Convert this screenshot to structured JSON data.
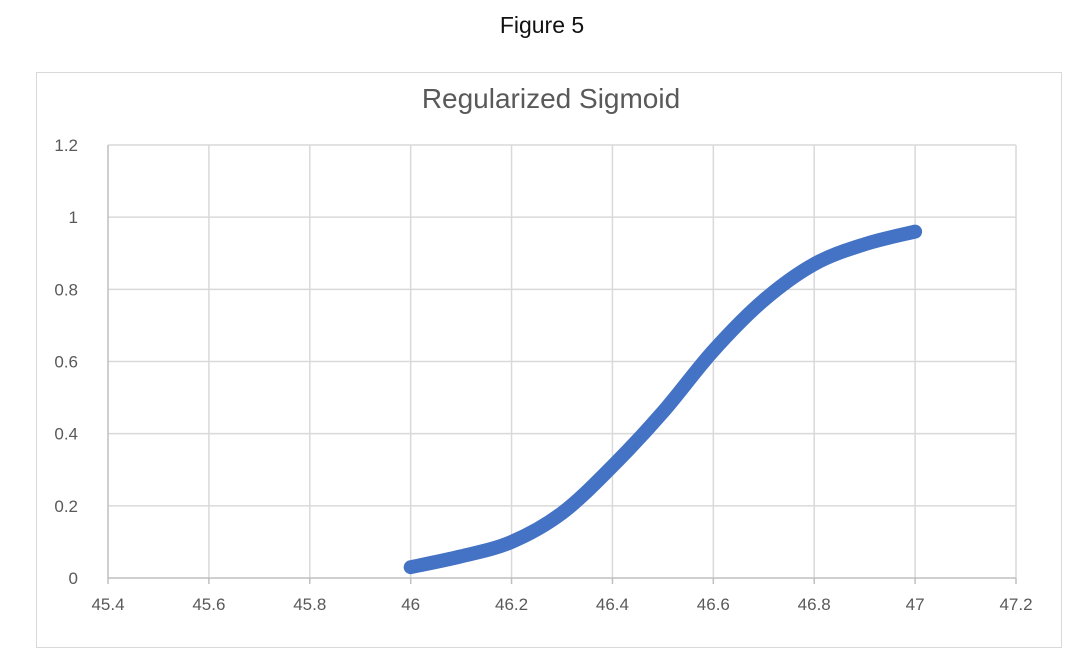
{
  "figure": {
    "caption": "Figure 5"
  },
  "chart_data": {
    "type": "line",
    "title": "Regularized Sigmoid",
    "xlabel": "",
    "ylabel": "",
    "xlim": [
      45.4,
      47.2
    ],
    "ylim": [
      0,
      1.2
    ],
    "xticks": [
      45.4,
      45.6,
      45.8,
      46,
      46.2,
      46.4,
      46.6,
      46.8,
      47,
      47.2
    ],
    "xtick_labels": [
      "45.4",
      "45.6",
      "45.8",
      "46",
      "46.2",
      "46.4",
      "46.6",
      "46.8",
      "47",
      "47.2"
    ],
    "yticks": [
      0,
      0.2,
      0.4,
      0.6,
      0.8,
      1,
      1.2
    ],
    "ytick_labels": [
      "0",
      "0.2",
      "0.4",
      "0.6",
      "0.8",
      "1",
      "1.2"
    ],
    "grid": true,
    "legend": "none",
    "series": [
      {
        "color": "#4472c4",
        "x": [
          46.0,
          46.1,
          46.2,
          46.3,
          46.4,
          46.5,
          46.6,
          46.7,
          46.8,
          46.9,
          47.0
        ],
        "y": [
          0.03,
          0.06,
          0.1,
          0.18,
          0.31,
          0.46,
          0.63,
          0.77,
          0.87,
          0.925,
          0.96
        ]
      }
    ]
  }
}
